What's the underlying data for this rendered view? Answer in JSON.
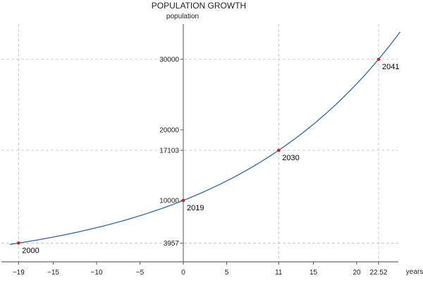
{
  "chart_data": {
    "type": "line",
    "title": "POPULATION GROWTH",
    "xlabel": "years",
    "ylabel": "population",
    "xlim": [
      -21,
      25
    ],
    "ylim": [
      1500,
      35000
    ],
    "grid": false,
    "x_ticks": [
      -19,
      -15,
      -10,
      -5,
      0,
      5,
      11,
      15,
      20,
      22.52
    ],
    "x_tick_labels": [
      "−19",
      "−15",
      "−10",
      "−5",
      "0",
      "5",
      "11",
      "15",
      "20",
      "22.52"
    ],
    "y_ticks": [
      3957,
      10000,
      17103,
      20000,
      30000
    ],
    "y_tick_labels": [
      "3957",
      "10000",
      "17103",
      "20000",
      "30000"
    ],
    "guide_lines": {
      "x": [
        -19,
        11,
        22.52
      ],
      "y": [
        3957,
        17103,
        30000
      ]
    },
    "model": {
      "base": 10000,
      "rate": 0.0488
    },
    "series": [
      {
        "x_range": [
          -20,
          25
        ],
        "points": [
          {
            "x": -19,
            "y": 3957,
            "label": "2000"
          },
          {
            "x": 0,
            "y": 10000,
            "label": "2019"
          },
          {
            "x": 11,
            "y": 17103,
            "label": "2030"
          },
          {
            "x": 22.52,
            "y": 30000,
            "label": "2041"
          }
        ]
      }
    ],
    "colors": {
      "curve": "#3e6fb0",
      "points": "#d81b1b"
    }
  }
}
